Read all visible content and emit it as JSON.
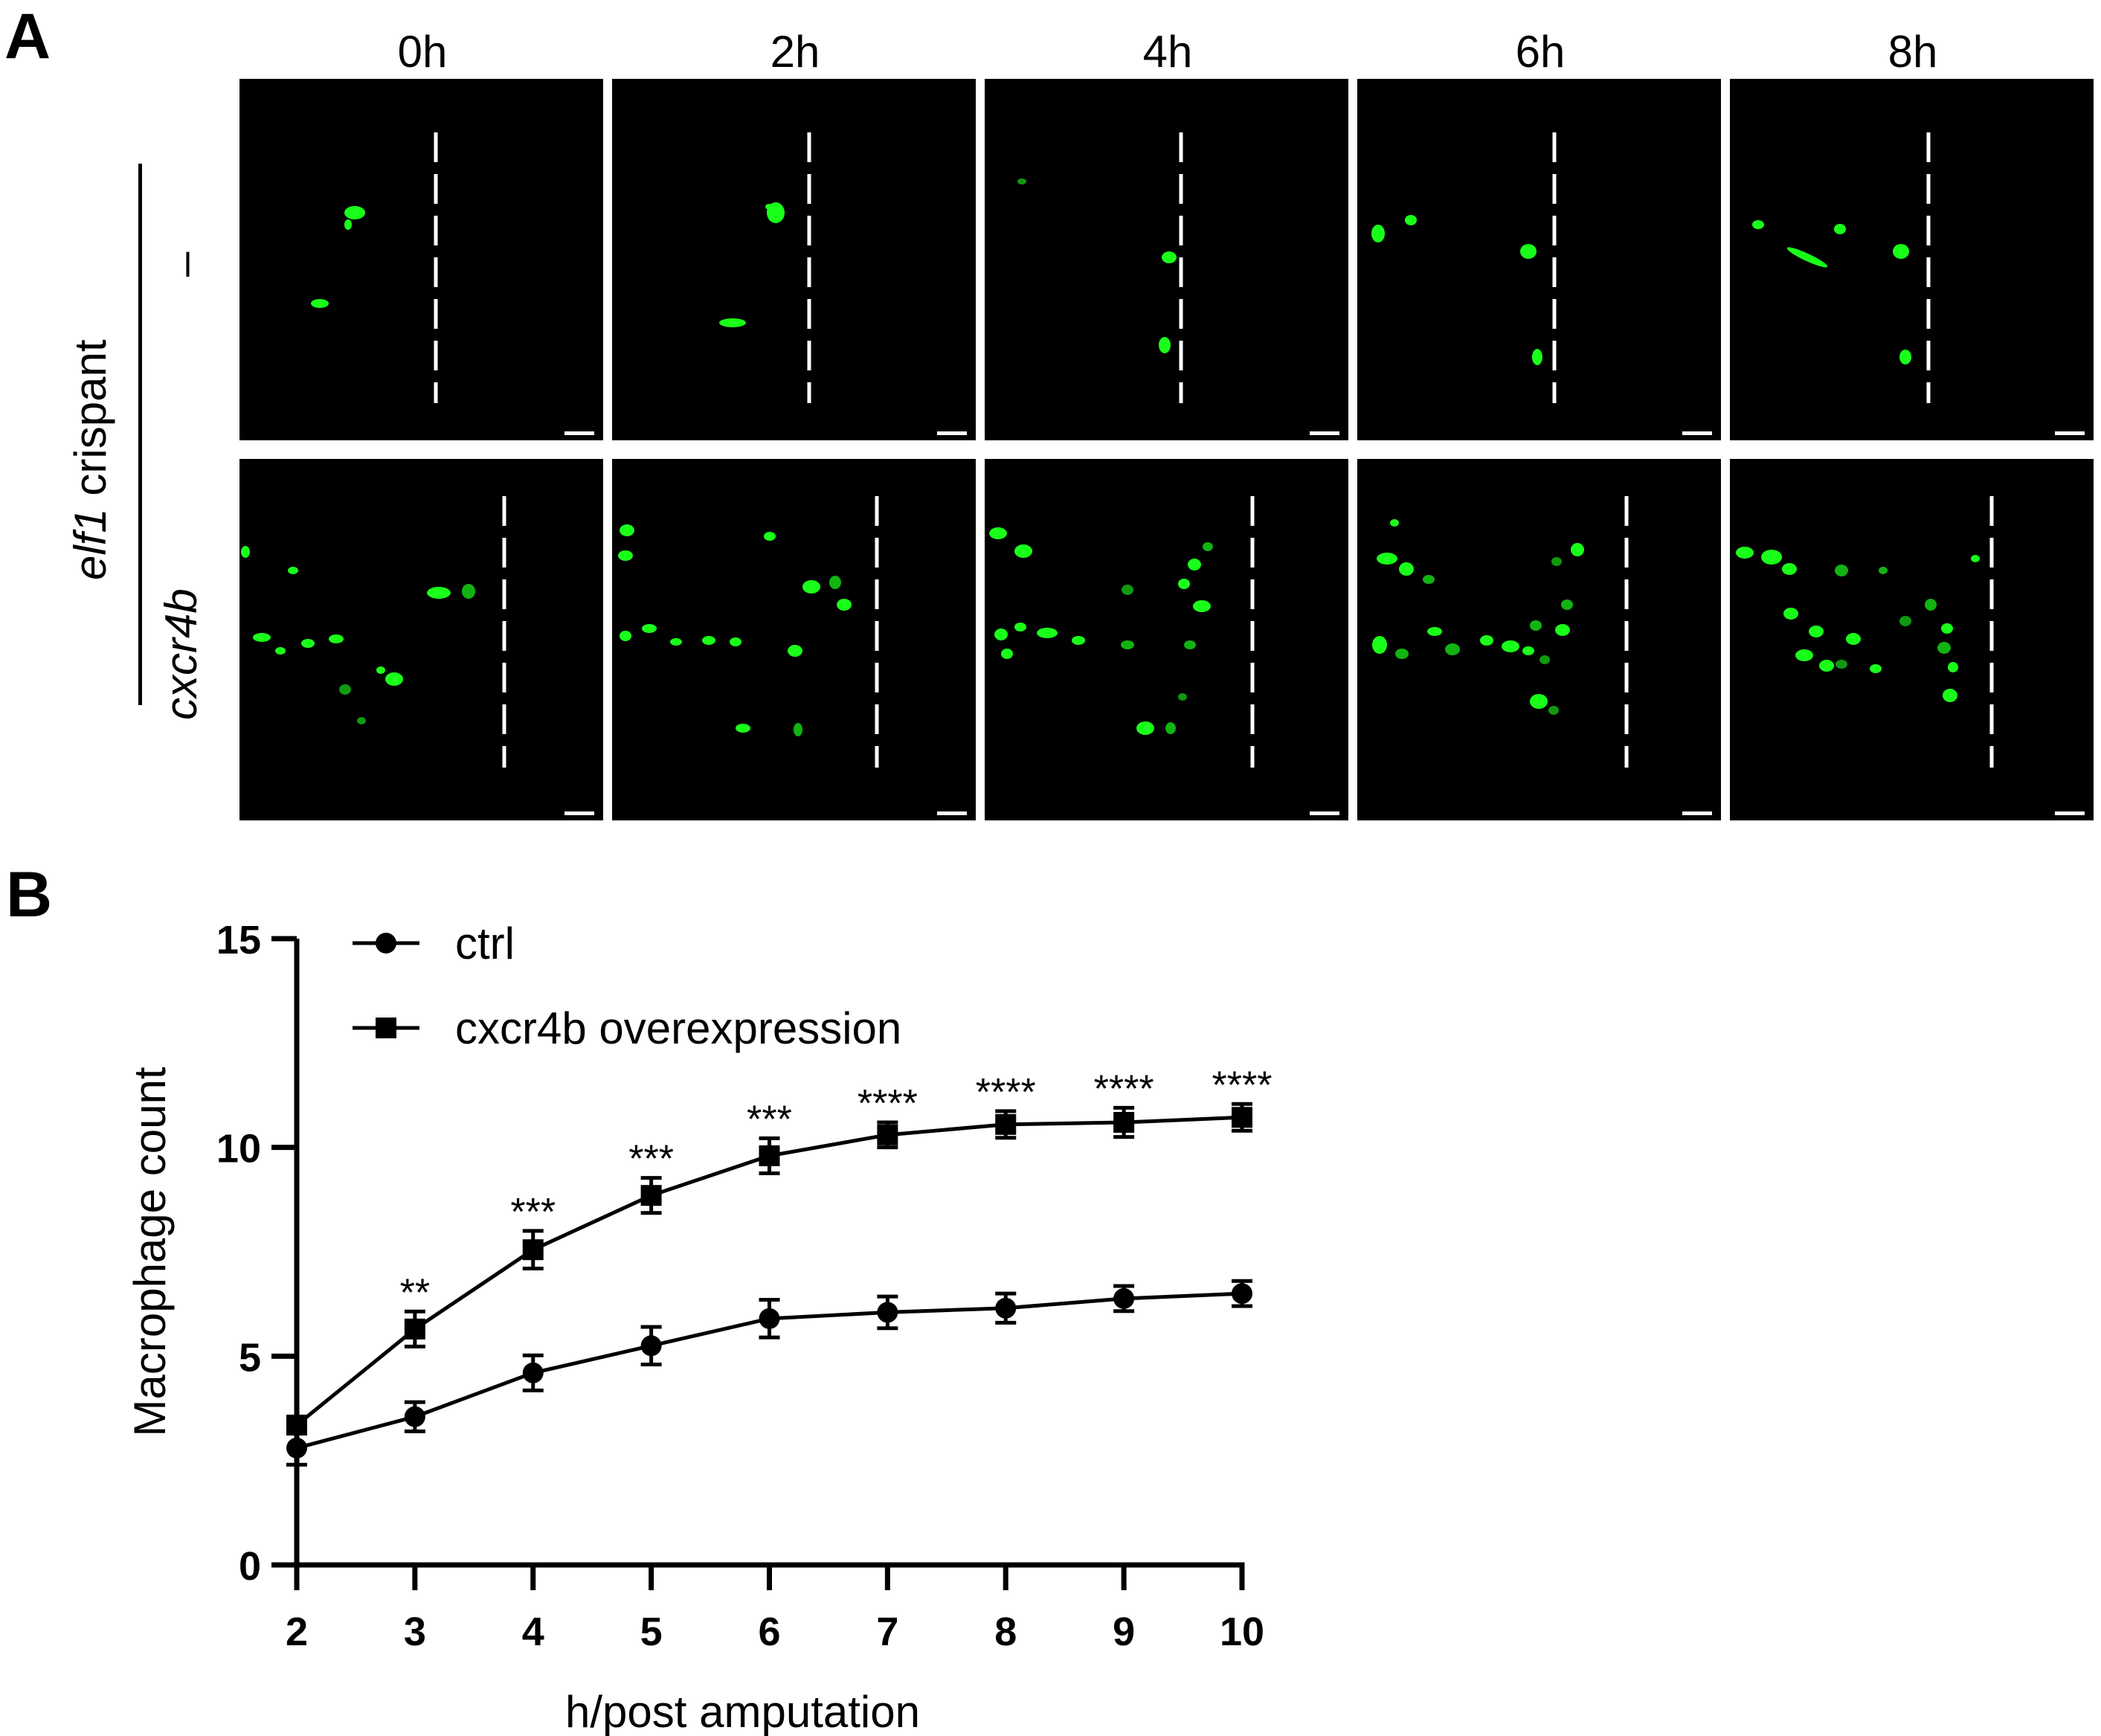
{
  "panel_a": {
    "letter": "A",
    "columns": [
      "0h",
      "2h",
      "4h",
      "6h",
      "8h"
    ],
    "group_label_gene": "elf1",
    "group_label_rest": " crispant",
    "rows": [
      {
        "label": "–",
        "italic": false
      },
      {
        "label": "cxcr4b",
        "italic": true
      }
    ],
    "fluorescence_color": "#1aff1a",
    "wound_line_color": "#ffffff"
  },
  "panel_b": {
    "letter": "B"
  },
  "chart_data": {
    "type": "line",
    "title": "",
    "xlabel": "h/post amputation",
    "ylabel": "Macrophage count",
    "x": [
      2,
      3,
      4,
      5,
      6,
      7,
      8,
      9,
      10
    ],
    "xlim": [
      2,
      10
    ],
    "ylim": [
      0,
      15
    ],
    "yticks": [
      0,
      5,
      10,
      15
    ],
    "grid": false,
    "legend_position": "top-left",
    "series": [
      {
        "name": "ctrl",
        "marker": "circle",
        "values": [
          2.8,
          3.55,
          4.6,
          5.25,
          5.9,
          6.05,
          6.15,
          6.38,
          6.5
        ],
        "errors": [
          0.4,
          0.35,
          0.42,
          0.45,
          0.45,
          0.38,
          0.35,
          0.3,
          0.3
        ]
      },
      {
        "name": "cxcr4b overexpression",
        "marker": "square",
        "values": [
          3.35,
          5.65,
          7.55,
          8.85,
          9.8,
          10.3,
          10.55,
          10.6,
          10.72
        ],
        "errors": [
          0.2,
          0.42,
          0.45,
          0.42,
          0.42,
          0.3,
          0.32,
          0.35,
          0.32
        ]
      }
    ],
    "annotations": [
      {
        "x": 3,
        "text": "**"
      },
      {
        "x": 4,
        "text": "***"
      },
      {
        "x": 5,
        "text": "***"
      },
      {
        "x": 6,
        "text": "***"
      },
      {
        "x": 7,
        "text": "****"
      },
      {
        "x": 8,
        "text": "****"
      },
      {
        "x": 9,
        "text": "****"
      },
      {
        "x": 10,
        "text": "****"
      }
    ]
  }
}
